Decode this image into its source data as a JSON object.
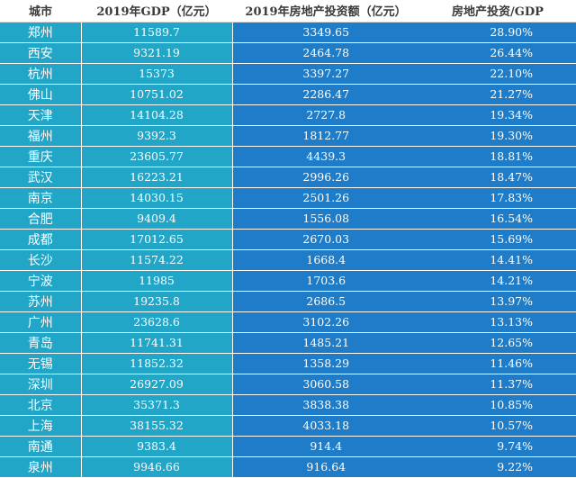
{
  "table": {
    "headers": [
      "城市",
      "2019年GDP（亿元）",
      "2019年房地产投资额（亿元）",
      "房地产投资/GDP"
    ],
    "rows": [
      [
        "郑州",
        "11589.7",
        "3349.65",
        "28.90%"
      ],
      [
        "西安",
        "9321.19",
        "2464.78",
        "26.44%"
      ],
      [
        "杭州",
        "15373",
        "3397.27",
        "22.10%"
      ],
      [
        "佛山",
        "10751.02",
        "2286.47",
        "21.27%"
      ],
      [
        "天津",
        "14104.28",
        "2727.8",
        "19.34%"
      ],
      [
        "福州",
        "9392.3",
        "1812.77",
        "19.30%"
      ],
      [
        "重庆",
        "23605.77",
        "4439.3",
        "18.81%"
      ],
      [
        "武汉",
        "16223.21",
        "2996.26",
        "18.47%"
      ],
      [
        "南京",
        "14030.15",
        "2501.26",
        "17.83%"
      ],
      [
        "合肥",
        "9409.4",
        "1556.08",
        "16.54%"
      ],
      [
        "成都",
        "17012.65",
        "2670.03",
        "15.69%"
      ],
      [
        "长沙",
        "11574.22",
        "1668.4",
        "14.41%"
      ],
      [
        "宁波",
        "11985",
        "1703.6",
        "14.21%"
      ],
      [
        "苏州",
        "19235.8",
        "2686.5",
        "13.97%"
      ],
      [
        "广州",
        "23628.6",
        "3102.26",
        "13.13%"
      ],
      [
        "青岛",
        "11741.31",
        "1485.21",
        "12.65%"
      ],
      [
        "无锡",
        "11852.32",
        "1358.29",
        "11.46%"
      ],
      [
        "深圳",
        "26927.09",
        "3060.58",
        "11.37%"
      ],
      [
        "北京",
        "35371.3",
        "3838.38",
        "10.85%"
      ],
      [
        "上海",
        "38155.32",
        "4033.18",
        "10.57%"
      ],
      [
        "南通",
        "9383.4",
        "914.4",
        "9.74%"
      ],
      [
        "泉州",
        "9946.66",
        "916.64",
        "9.22%"
      ]
    ]
  },
  "colors": {
    "teal_column": "#21A6C8",
    "blue_column": "#1F7CC8",
    "header_text": "#3a3a3a"
  }
}
